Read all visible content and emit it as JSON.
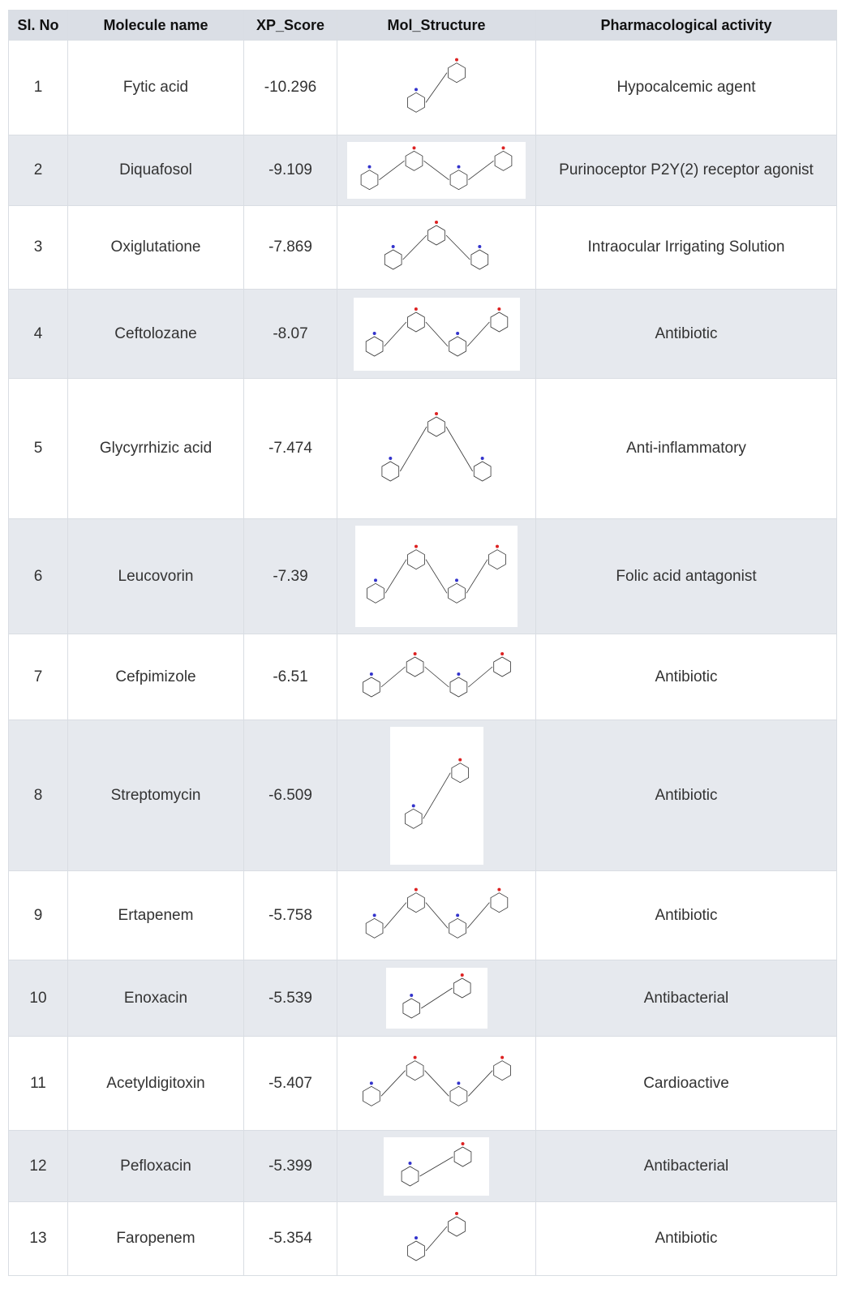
{
  "table": {
    "header": [
      "Sl. No",
      "Molecule name",
      "XP_Score",
      "Mol_Structure",
      "Pharmacological activity"
    ],
    "rows": [
      [
        "1",
        "Fytic acid",
        "-10.296",
        "Hypocalcemic agent"
      ],
      [
        "2",
        "Diquafosol",
        "-9.109",
        "Purinoceptor P2Y(2) receptor agonist"
      ],
      [
        "3",
        "Oxiglutatione",
        "-7.869",
        "Intraocular Irrigating Solution"
      ],
      [
        "4",
        "Ceftolozane",
        "-8.07",
        "Antibiotic"
      ],
      [
        "5",
        "Glycyrrhizic acid",
        "-7.474",
        "Anti-inflammatory"
      ],
      [
        "6",
        "Leucovorin",
        "-7.39",
        "Folic acid antagonist"
      ],
      [
        "7",
        "Cefpimizole",
        "-6.51",
        "Antibiotic"
      ],
      [
        "8",
        "Streptomycin",
        "-6.509",
        "Antibiotic"
      ],
      [
        "9",
        "Ertapenem",
        "-5.758",
        "Antibiotic"
      ],
      [
        "10",
        "Enoxacin",
        "-5.539",
        "Antibacterial"
      ],
      [
        "11",
        "Acetyldigitoxin",
        "-5.407",
        "Cardioactive"
      ],
      [
        "12",
        "Pefloxacin",
        "-5.399",
        "Antibacterial"
      ],
      [
        "13",
        "Faropenem",
        "-5.354",
        "Antibiotic"
      ]
    ]
  }
}
